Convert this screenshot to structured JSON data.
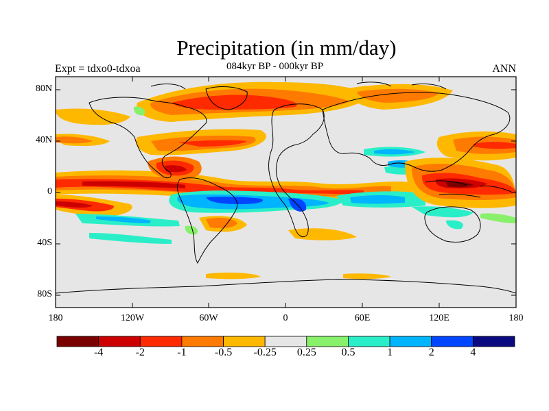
{
  "title": "Precipitation (in mm/day)",
  "subtitle": "084kyr BP - 000kyr BP",
  "left_string": "Expt = tdxo0-tdxoa",
  "right_string": "ANN",
  "lat_labels": [
    "80N",
    "40N",
    "0",
    "40S",
    "80S"
  ],
  "lon_labels": [
    "180",
    "120W",
    "60W",
    "0",
    "60E",
    "120E",
    "180"
  ],
  "colorbar": {
    "colors": [
      "#7a0000",
      "#cc0000",
      "#ff2a00",
      "#ff7a00",
      "#ffb800",
      "#e6e6e6",
      "#88f06a",
      "#2aeec8",
      "#00b4ff",
      "#0045ff",
      "#0a0a80"
    ],
    "labels": [
      "-4",
      "-2",
      "-1",
      "-0.5",
      "-0.25",
      "0.25",
      "0.5",
      "1",
      "2",
      "4"
    ]
  },
  "chart_data": {
    "type": "heatmap",
    "title": "Precipitation (in mm/day)",
    "subtitle": "084kyr BP - 000kyr BP",
    "x_range": [
      -180,
      180
    ],
    "y_range": [
      -90,
      90
    ],
    "levels": [
      -4,
      -2,
      -1,
      -0.5,
      -0.25,
      0.25,
      0.5,
      1,
      2,
      4
    ],
    "x_ticks": [
      "180",
      "120W",
      "60W",
      "0",
      "60E",
      "120E",
      "180"
    ],
    "y_ticks": [
      "80N",
      "40N",
      "0",
      "40S",
      "80S"
    ]
  }
}
